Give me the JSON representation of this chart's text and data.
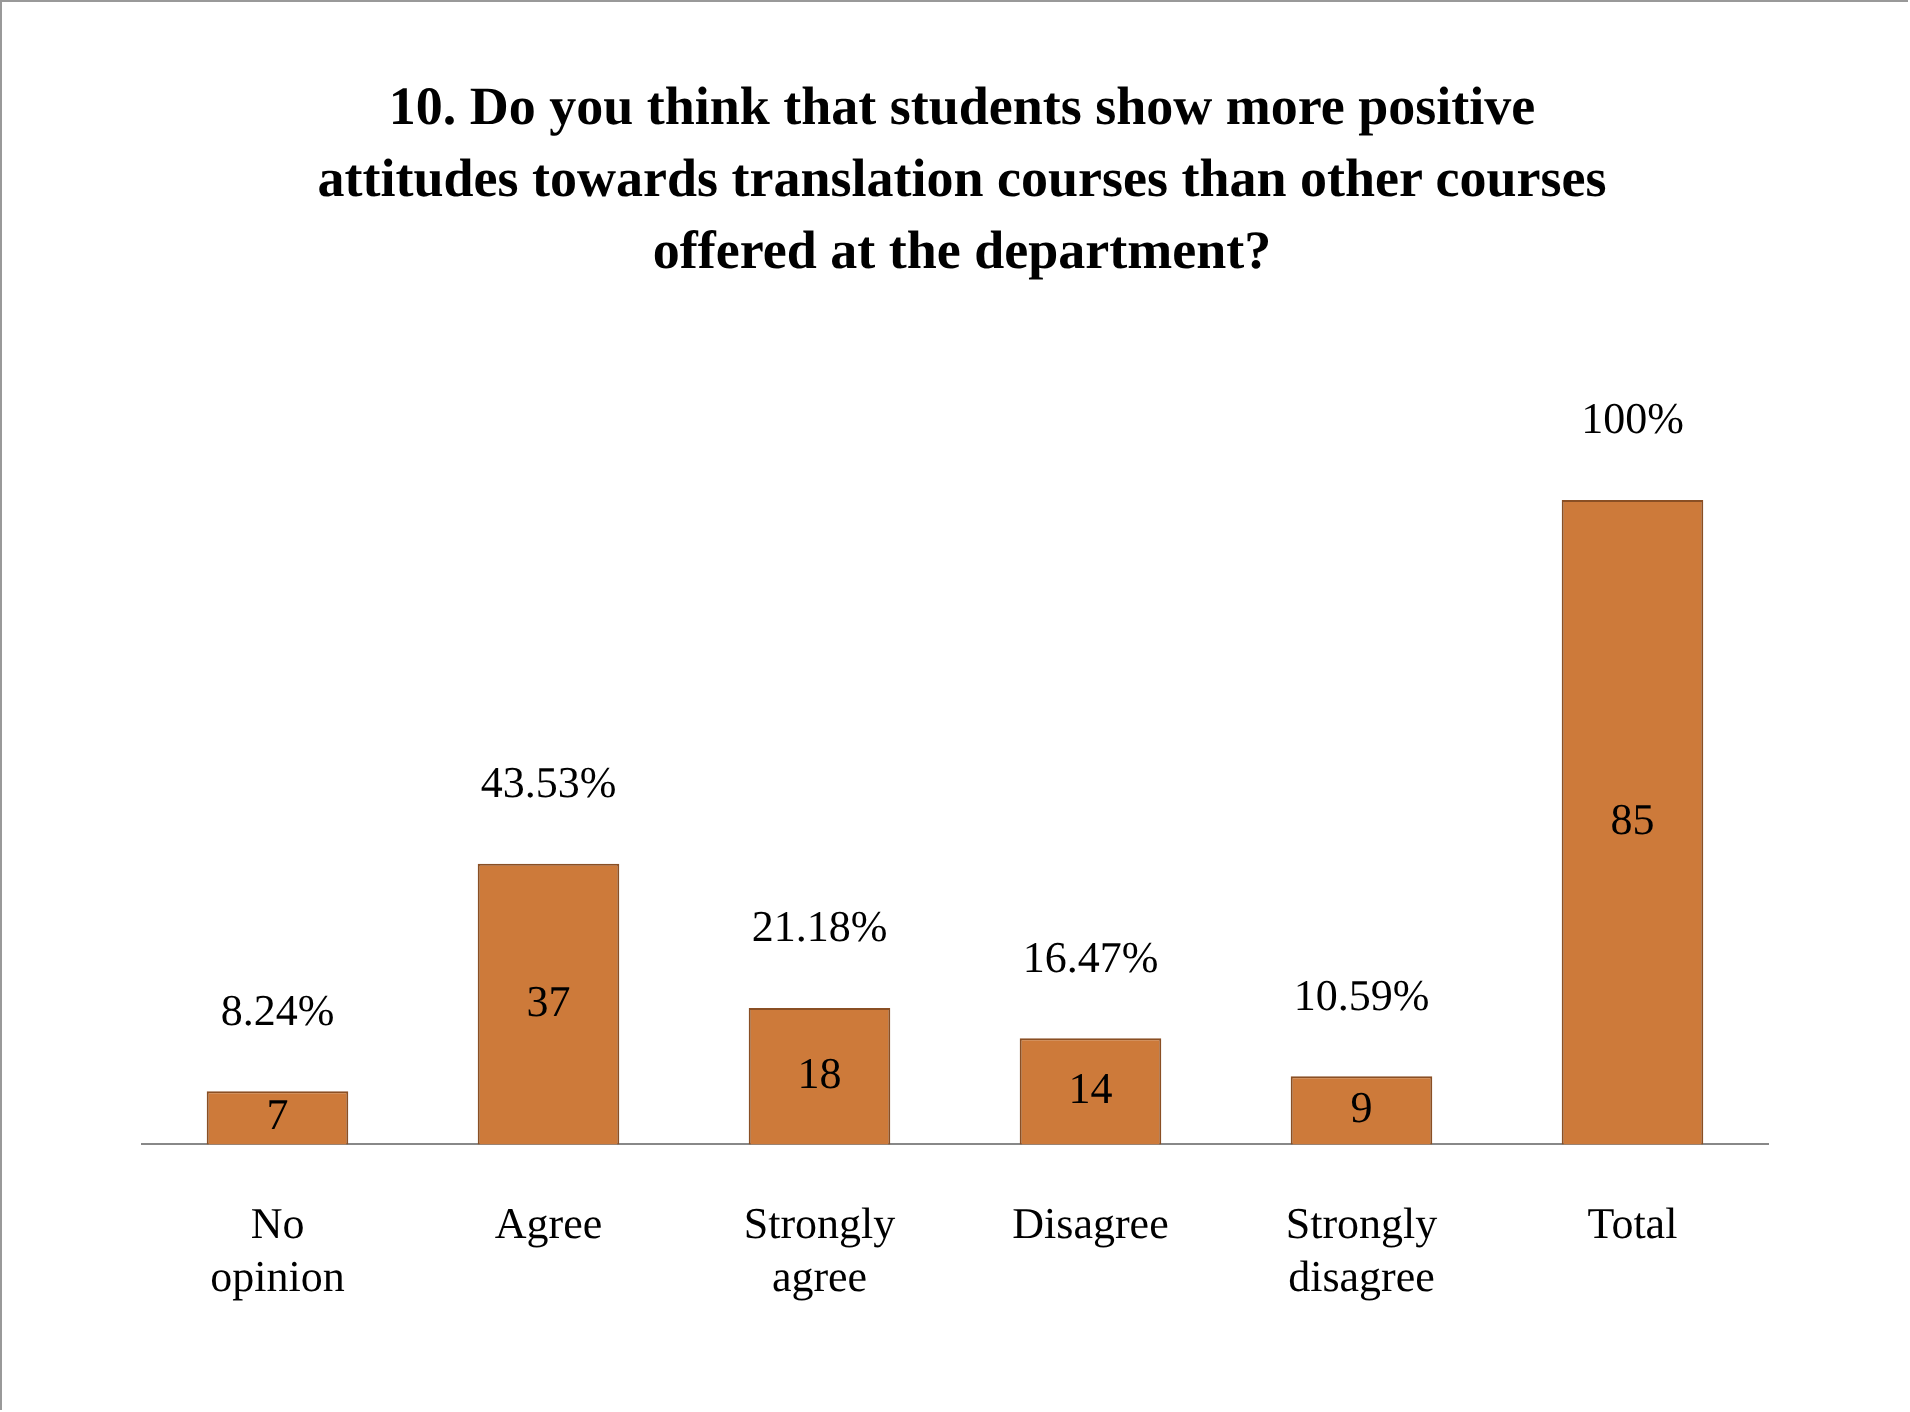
{
  "chart_data": {
    "type": "bar",
    "title": "10. Do you think that students show more positive attitudes towards translation courses than other courses offered at the department?",
    "categories": [
      "No opinion",
      "Agree",
      "Strongly agree",
      "Disagree",
      "Strongly disagree",
      "Total"
    ],
    "values": [
      7,
      37,
      18,
      14,
      9,
      85
    ],
    "annotations": [
      {
        "text": "8.24%",
        "x": "No opinion",
        "y": 7
      },
      {
        "text": "43.53%",
        "x": "Agree",
        "y": 37
      },
      {
        "text": "21.18%",
        "x": "Strongly agree",
        "y": 18
      },
      {
        "text": "16.47%",
        "x": "Disagree",
        "y": 14
      },
      {
        "text": "10.59%",
        "x": "Strongly disagree",
        "y": 9
      },
      {
        "text": "100%",
        "x": "Total",
        "y": 85
      }
    ],
    "color": "#cd7a3a",
    "data_labels": true,
    "grid": false,
    "legend": false
  }
}
